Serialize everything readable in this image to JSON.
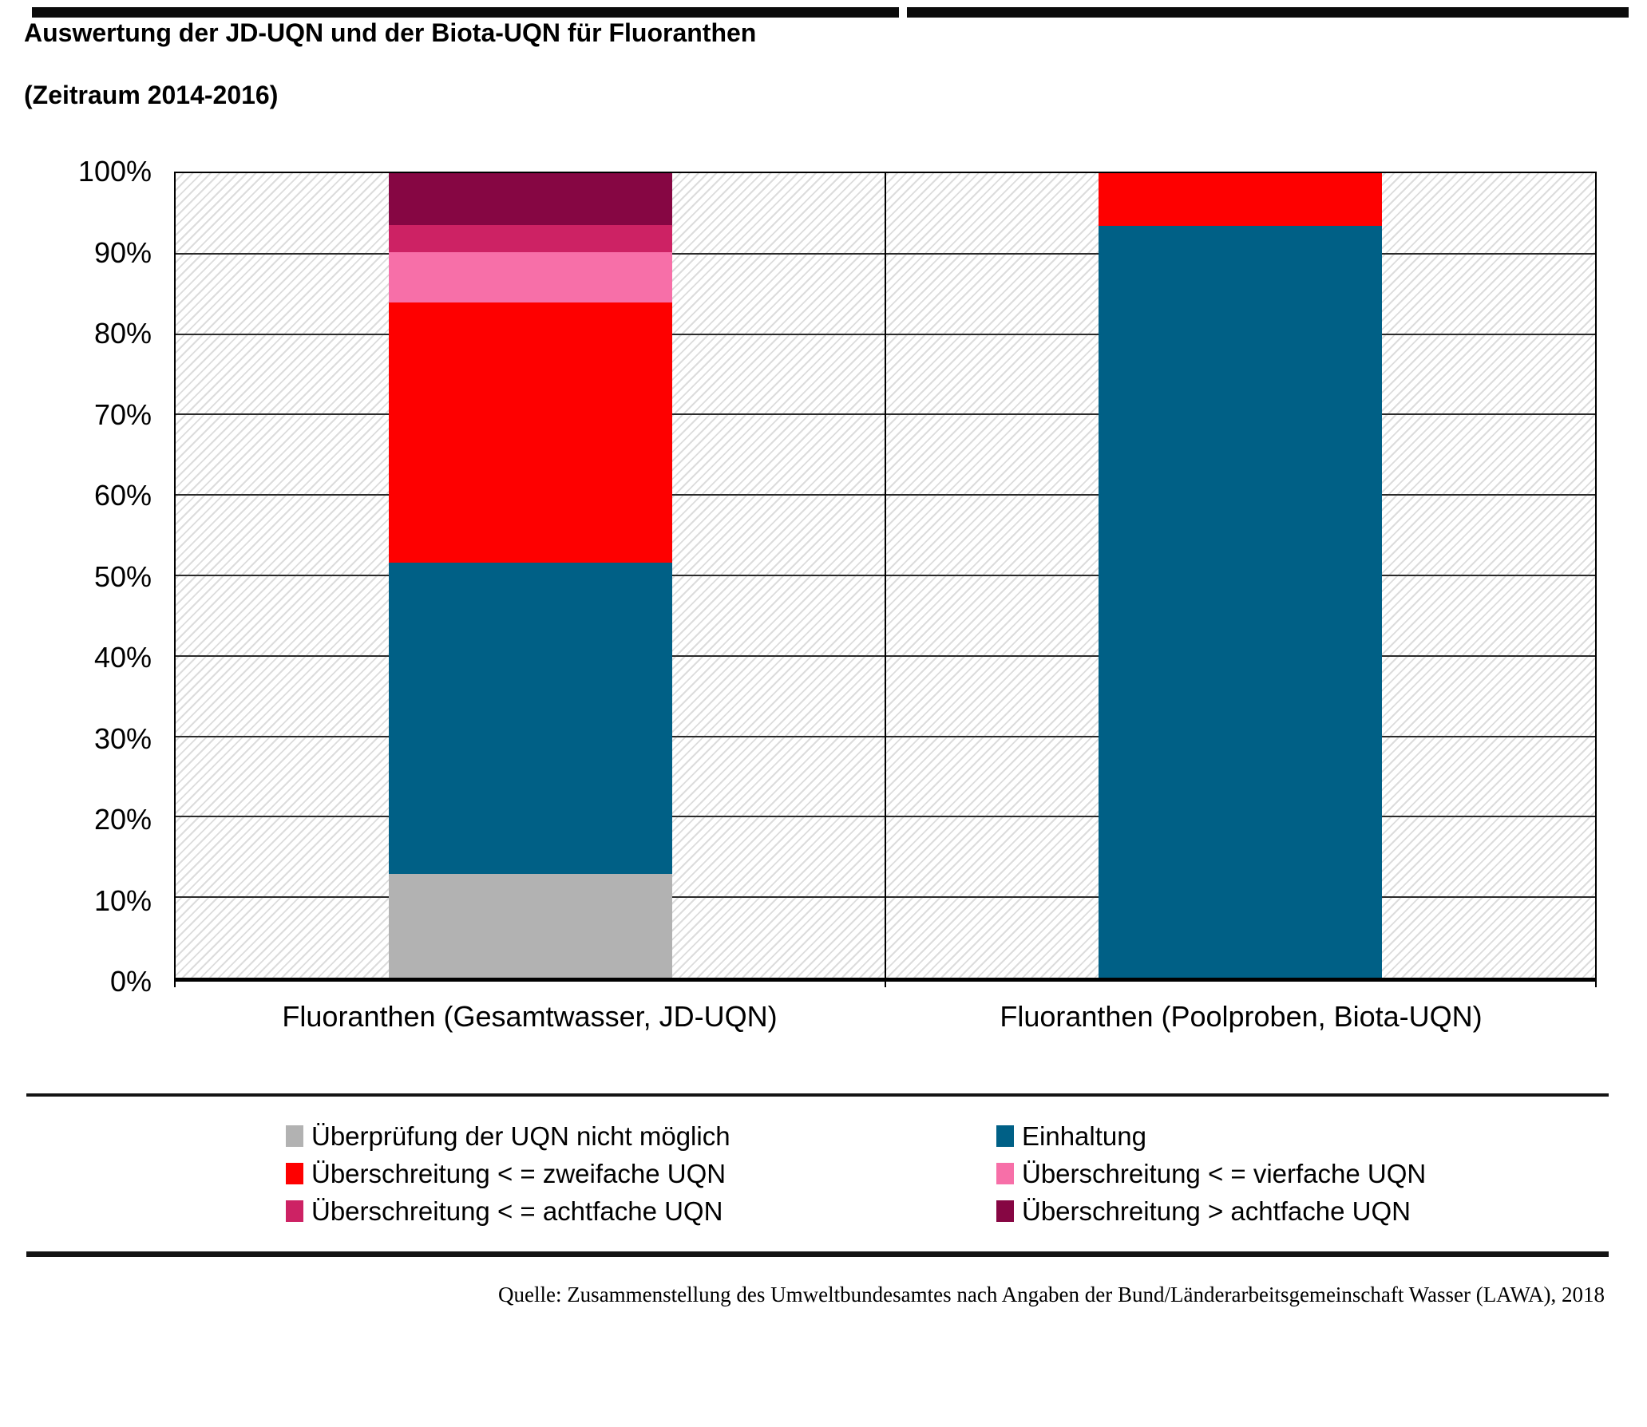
{
  "page": {
    "title": "Auswertung der JD-UQN und der Biota-UQN für Fluoranthen",
    "subtitle": "(Zeitraum 2014-2016)",
    "source": "Quelle: Zusammenstellung des Umweltbundesamtes nach Angaben der Bund/Länderarbeitsgemeinschaft Wasser (LAWA), 2018"
  },
  "chart_data": {
    "type": "bar",
    "stacked": true,
    "title": "Auswertung der JD-UQN und der Biota-UQN für Fluoranthen (Zeitraum 2014-2016)",
    "categories": [
      "Fluoranthen (Gesamtwasser, JD-UQN)",
      "Fluoranthen (Poolproben, Biota-UQN)"
    ],
    "series": [
      {
        "name": "Überprüfung der UQN nicht möglich",
        "color": "#B2B2B2",
        "values": [
          12.9,
          0
        ]
      },
      {
        "name": "Einhaltung",
        "color": "#006086",
        "values": [
          38.7,
          93.5
        ]
      },
      {
        "name": "Überschreitung < = zweifache UQN",
        "color": "#FE0000",
        "values": [
          32.3,
          6.5
        ]
      },
      {
        "name": "Überschreitung < = vierfache UQN",
        "color": "#F76FA8",
        "values": [
          6.3,
          0
        ]
      },
      {
        "name": "Überschreitung < = achtfache UQN",
        "color": "#CD2264",
        "values": [
          3.4,
          0
        ]
      },
      {
        "name": "Überschreitung > achtfache UQN",
        "color": "#860643",
        "values": [
          6.4,
          0
        ]
      }
    ],
    "ylim": [
      0,
      100
    ],
    "yticks": [
      "0%",
      "10%",
      "20%",
      "30%",
      "40%",
      "50%",
      "60%",
      "70%",
      "80%",
      "90%",
      "100%"
    ],
    "unit": "percent",
    "grid": "horizontal",
    "legend_position": "bottom",
    "background_pattern": "diagonal-hatch"
  },
  "legend": {
    "items": [
      {
        "label": "Überprüfung der UQN nicht möglich",
        "color": "#B2B2B2"
      },
      {
        "label": "Einhaltung",
        "color": "#006086"
      },
      {
        "label": "Überschreitung < = zweifache UQN",
        "color": "#FE0000"
      },
      {
        "label": "Überschreitung < = vierfache UQN",
        "color": "#F76FA8"
      },
      {
        "label": "Überschreitung < = achtfache UQN",
        "color": "#CD2264"
      },
      {
        "label": "Überschreitung > achtfache UQN",
        "color": "#860643"
      }
    ]
  }
}
